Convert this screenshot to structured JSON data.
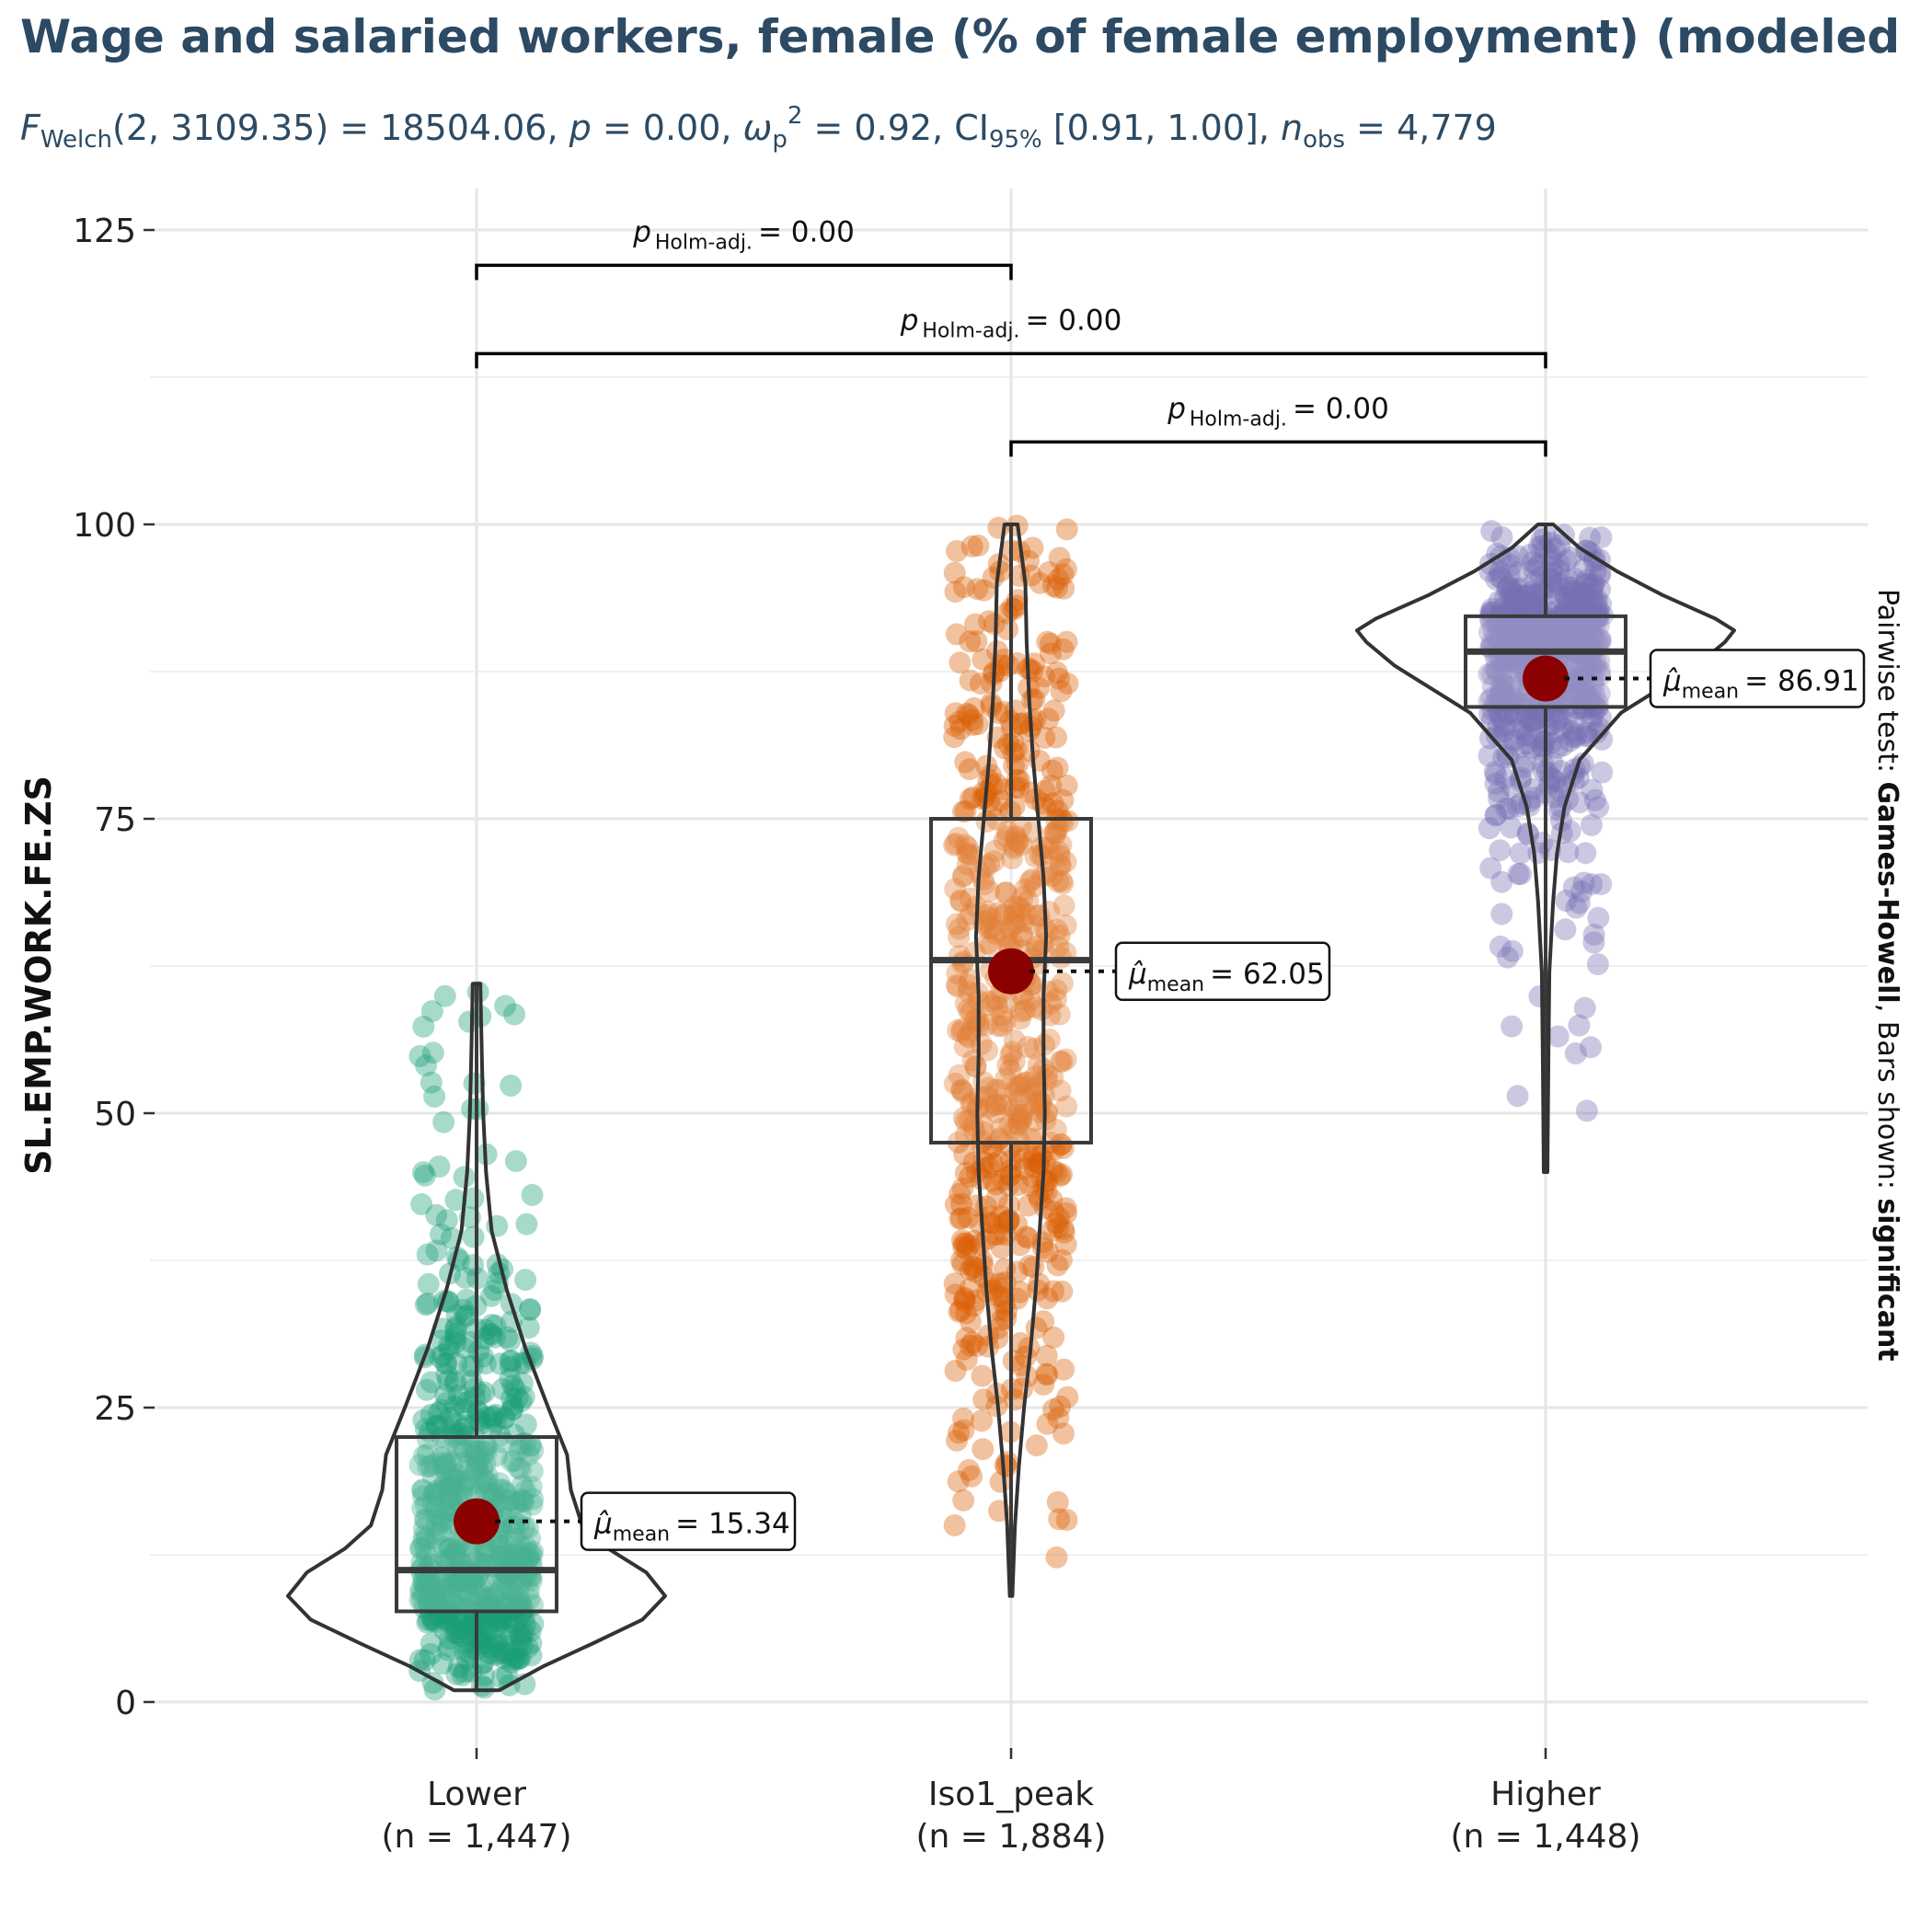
{
  "chart_data": {
    "type": "violin-box-scatter",
    "title": "Wage and salaried workers, female (% of female employment) (modeled",
    "subtitle": {
      "parts": [
        {
          "t": "F",
          "style": "italic"
        },
        {
          "t": "Welch",
          "style": "sub"
        },
        {
          "t": "(2, 3109.35) = 18504.06, "
        },
        {
          "t": "p",
          "style": "italic"
        },
        {
          "t": " = 0.00, "
        },
        {
          "t": "ω",
          "style": "italic"
        },
        {
          "t": "p",
          "style": "sub"
        },
        {
          "t": "2",
          "style": "sup"
        },
        {
          "t": " = 0.92, CI"
        },
        {
          "t": "95%",
          "style": "sub"
        },
        {
          "t": " [0.91, 1.00], "
        },
        {
          "t": "n",
          "style": "italic"
        },
        {
          "t": "obs",
          "style": "sub"
        },
        {
          "t": " = 4,779"
        }
      ]
    },
    "ylabel": "SL.EMP.WORK.FE.ZS",
    "ylim": [
      -5,
      128
    ],
    "yticks": [
      0,
      25,
      50,
      75,
      100,
      125
    ],
    "grid": true,
    "caption": {
      "prefix": "Pairwise test: ",
      "test": "Games-Howell",
      "middle": ", Bars shown: ",
      "shown": "significant"
    },
    "groups": [
      {
        "name": "Lower",
        "n_label": "(n = 1,447)",
        "color": "#1b9e77",
        "min": 1,
        "q1": 7.7,
        "median": 11.2,
        "q3": 22.5,
        "max": 61,
        "mean": 15.34,
        "mean_label": "= 15.34",
        "violin": [
          [
            1,
            0.12
          ],
          [
            3,
            0.35
          ],
          [
            5,
            0.62
          ],
          [
            7,
            0.88
          ],
          [
            9,
            1.0
          ],
          [
            11,
            0.9
          ],
          [
            13,
            0.7
          ],
          [
            15,
            0.56
          ],
          [
            18,
            0.5
          ],
          [
            21,
            0.48
          ],
          [
            25,
            0.38
          ],
          [
            30,
            0.26
          ],
          [
            35,
            0.16
          ],
          [
            40,
            0.08
          ],
          [
            45,
            0.05
          ],
          [
            50,
            0.035
          ],
          [
            55,
            0.028
          ],
          [
            61,
            0.02
          ]
        ]
      },
      {
        "name": "Iso1_peak",
        "n_label": "(n = 1,884)",
        "color": "#d95f02",
        "min": 9,
        "q1": 47.5,
        "median": 63,
        "q3": 75,
        "max": 100,
        "mean": 62.05,
        "mean_label": "= 62.05",
        "violin": [
          [
            9,
            0.01
          ],
          [
            15,
            0.03
          ],
          [
            20,
            0.06
          ],
          [
            25,
            0.1
          ],
          [
            30,
            0.15
          ],
          [
            35,
            0.19
          ],
          [
            40,
            0.22
          ],
          [
            45,
            0.25
          ],
          [
            50,
            0.26
          ],
          [
            55,
            0.25
          ],
          [
            60,
            0.25
          ],
          [
            65,
            0.27
          ],
          [
            70,
            0.25
          ],
          [
            75,
            0.21
          ],
          [
            80,
            0.17
          ],
          [
            85,
            0.14
          ],
          [
            90,
            0.12
          ],
          [
            95,
            0.11
          ],
          [
            100,
            0.05
          ]
        ]
      },
      {
        "name": "Higher",
        "n_label": "(n = 1,448)",
        "color": "#7570b3",
        "min": 45,
        "q1": 84.5,
        "median": 89.2,
        "q3": 92.2,
        "max": 100,
        "mean": 86.91,
        "mean_label": "= 86.91",
        "violin": [
          [
            45,
            0.01
          ],
          [
            55,
            0.015
          ],
          [
            62,
            0.02
          ],
          [
            68,
            0.04
          ],
          [
            72,
            0.06
          ],
          [
            76,
            0.1
          ],
          [
            80,
            0.18
          ],
          [
            84,
            0.4
          ],
          [
            86,
            0.6
          ],
          [
            88,
            0.8
          ],
          [
            90,
            0.95
          ],
          [
            91,
            1.0
          ],
          [
            92,
            0.9
          ],
          [
            94,
            0.62
          ],
          [
            96,
            0.38
          ],
          [
            98,
            0.18
          ],
          [
            100,
            0.04
          ]
        ]
      }
    ],
    "comparisons": [
      {
        "from": 0,
        "to": 1,
        "y": 122,
        "label": "= 0.00"
      },
      {
        "from": 0,
        "to": 2,
        "y": 114.5,
        "label": "= 0.00"
      },
      {
        "from": 1,
        "to": 2,
        "y": 107,
        "label": "= 0.00"
      }
    ],
    "p_symbol": "p",
    "p_sub": "Holm-adj.",
    "mean_symbol": "μ̂",
    "mean_sub": "mean"
  }
}
